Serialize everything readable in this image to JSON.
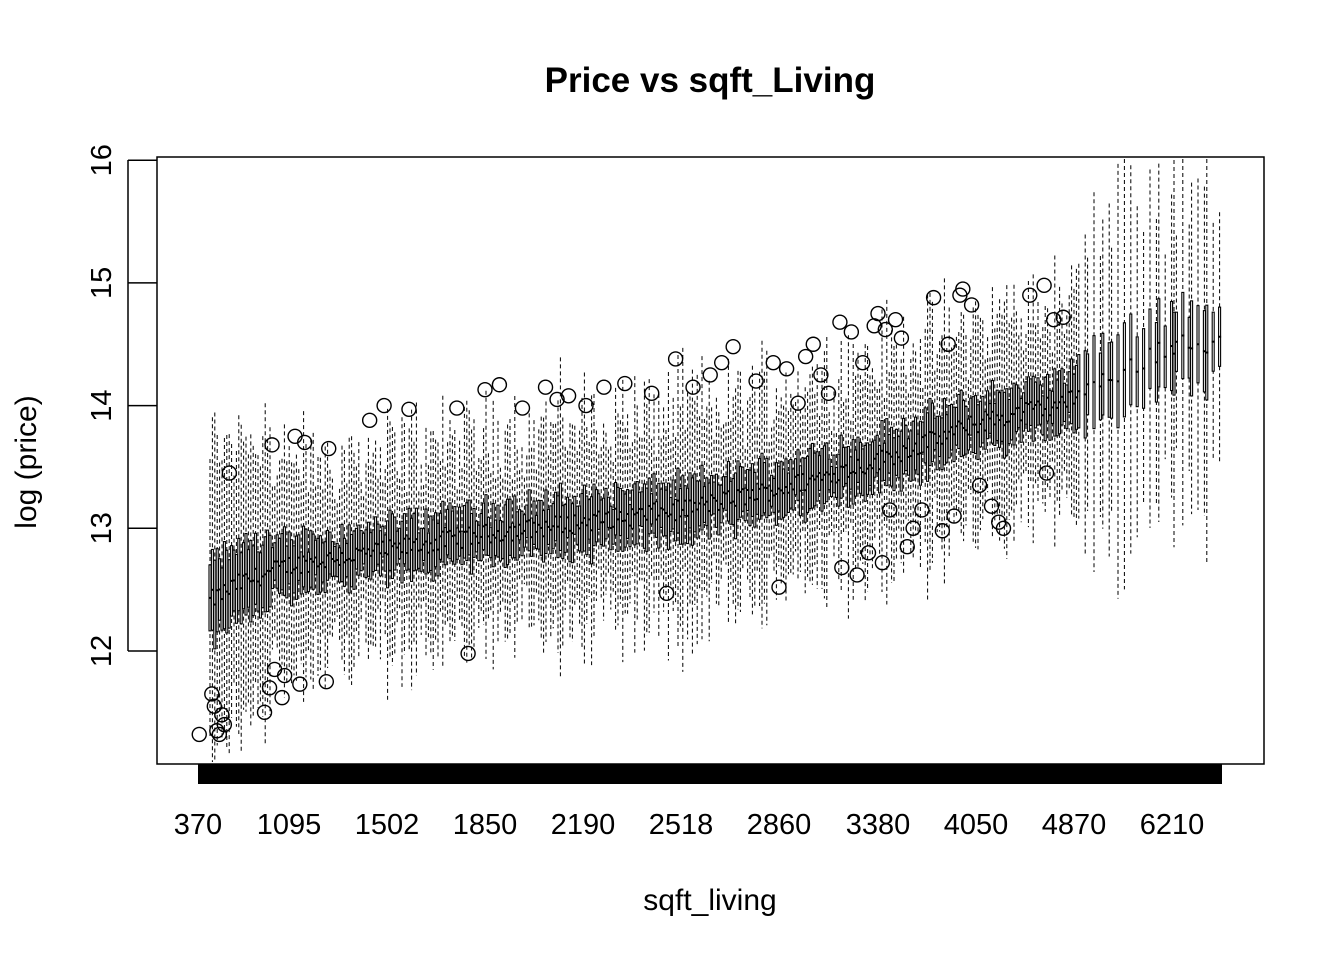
{
  "chart_data": {
    "type": "box",
    "title": "Price vs sqft_Living",
    "xlabel": "sqft_living",
    "ylabel": "log (price)",
    "ylim": [
      11.1,
      16.0
    ],
    "y_ticks": [
      12,
      13,
      14,
      15,
      16
    ],
    "x_tick_labels": [
      "370",
      "1095",
      "1502",
      "1850",
      "2190",
      "2518",
      "2860",
      "3380",
      "4050",
      "4870",
      "6210"
    ],
    "x_range": [
      370,
      6210
    ],
    "grid": false,
    "legend": "none",
    "box_colors": {
      "fill": "#ffffff",
      "line": "#000000"
    },
    "trend": [
      {
        "sqft": 370,
        "median": 12.35
      },
      {
        "sqft": 700,
        "median": 12.55
      },
      {
        "sqft": 1095,
        "median": 12.7
      },
      {
        "sqft": 1502,
        "median": 12.82
      },
      {
        "sqft": 1850,
        "median": 12.95
      },
      {
        "sqft": 2190,
        "median": 13.05
      },
      {
        "sqft": 2518,
        "median": 13.15
      },
      {
        "sqft": 2860,
        "median": 13.32
      },
      {
        "sqft": 3380,
        "median": 13.55
      },
      {
        "sqft": 4050,
        "median": 13.85
      },
      {
        "sqft": 4870,
        "median": 14.05
      },
      {
        "sqft": 6210,
        "median": 14.5
      }
    ],
    "outliers": [
      {
        "sqft": 380,
        "value": 11.32
      },
      {
        "sqft": 480,
        "value": 11.65
      },
      {
        "sqft": 500,
        "value": 11.55
      },
      {
        "sqft": 520,
        "value": 11.35
      },
      {
        "sqft": 540,
        "value": 11.32
      },
      {
        "sqft": 560,
        "value": 11.48
      },
      {
        "sqft": 580,
        "value": 11.4
      },
      {
        "sqft": 620,
        "value": 13.45
      },
      {
        "sqft": 900,
        "value": 11.5
      },
      {
        "sqft": 940,
        "value": 11.7
      },
      {
        "sqft": 960,
        "value": 13.68
      },
      {
        "sqft": 980,
        "value": 11.85
      },
      {
        "sqft": 1040,
        "value": 11.62
      },
      {
        "sqft": 1060,
        "value": 11.8
      },
      {
        "sqft": 1120,
        "value": 13.75
      },
      {
        "sqft": 1140,
        "value": 11.73
      },
      {
        "sqft": 1160,
        "value": 13.7
      },
      {
        "sqft": 1250,
        "value": 11.75
      },
      {
        "sqft": 1260,
        "value": 13.65
      },
      {
        "sqft": 1430,
        "value": 13.88
      },
      {
        "sqft": 1490,
        "value": 14.0
      },
      {
        "sqft": 1580,
        "value": 13.97
      },
      {
        "sqft": 1750,
        "value": 13.98
      },
      {
        "sqft": 1790,
        "value": 11.98
      },
      {
        "sqft": 1850,
        "value": 14.13
      },
      {
        "sqft": 1900,
        "value": 14.17
      },
      {
        "sqft": 1980,
        "value": 13.98
      },
      {
        "sqft": 2060,
        "value": 14.15
      },
      {
        "sqft": 2100,
        "value": 14.05
      },
      {
        "sqft": 2140,
        "value": 14.08
      },
      {
        "sqft": 2200,
        "value": 14.0
      },
      {
        "sqft": 2260,
        "value": 14.15
      },
      {
        "sqft": 2330,
        "value": 14.18
      },
      {
        "sqft": 2420,
        "value": 14.1
      },
      {
        "sqft": 2470,
        "value": 12.47
      },
      {
        "sqft": 2500,
        "value": 14.38
      },
      {
        "sqft": 2560,
        "value": 14.15
      },
      {
        "sqft": 2620,
        "value": 14.25
      },
      {
        "sqft": 2660,
        "value": 14.35
      },
      {
        "sqft": 2700,
        "value": 14.48
      },
      {
        "sqft": 2780,
        "value": 14.2
      },
      {
        "sqft": 2840,
        "value": 14.35
      },
      {
        "sqft": 2860,
        "value": 12.52
      },
      {
        "sqft": 2900,
        "value": 14.3
      },
      {
        "sqft": 2960,
        "value": 14.02
      },
      {
        "sqft": 3000,
        "value": 14.4
      },
      {
        "sqft": 3040,
        "value": 14.5
      },
      {
        "sqft": 3080,
        "value": 14.25
      },
      {
        "sqft": 3120,
        "value": 14.1
      },
      {
        "sqft": 3180,
        "value": 14.68
      },
      {
        "sqft": 3190,
        "value": 12.68
      },
      {
        "sqft": 3240,
        "value": 14.6
      },
      {
        "sqft": 3270,
        "value": 12.62
      },
      {
        "sqft": 3300,
        "value": 14.35
      },
      {
        "sqft": 3330,
        "value": 12.8
      },
      {
        "sqft": 3360,
        "value": 14.65
      },
      {
        "sqft": 3380,
        "value": 14.75
      },
      {
        "sqft": 3410,
        "value": 12.72
      },
      {
        "sqft": 3430,
        "value": 14.62
      },
      {
        "sqft": 3460,
        "value": 13.15
      },
      {
        "sqft": 3500,
        "value": 14.7
      },
      {
        "sqft": 3540,
        "value": 14.55
      },
      {
        "sqft": 3580,
        "value": 12.85
      },
      {
        "sqft": 3620,
        "value": 13.0
      },
      {
        "sqft": 3680,
        "value": 13.15
      },
      {
        "sqft": 3760,
        "value": 14.88
      },
      {
        "sqft": 3820,
        "value": 12.98
      },
      {
        "sqft": 3860,
        "value": 14.5
      },
      {
        "sqft": 3900,
        "value": 13.1
      },
      {
        "sqft": 3940,
        "value": 14.9
      },
      {
        "sqft": 3960,
        "value": 14.95
      },
      {
        "sqft": 4020,
        "value": 14.82
      },
      {
        "sqft": 4080,
        "value": 13.35
      },
      {
        "sqft": 4180,
        "value": 13.18
      },
      {
        "sqft": 4240,
        "value": 13.05
      },
      {
        "sqft": 4280,
        "value": 13.0
      },
      {
        "sqft": 4500,
        "value": 14.9
      },
      {
        "sqft": 4620,
        "value": 14.98
      },
      {
        "sqft": 4640,
        "value": 13.45
      },
      {
        "sqft": 4700,
        "value": 14.7
      },
      {
        "sqft": 4780,
        "value": 14.72
      }
    ]
  }
}
